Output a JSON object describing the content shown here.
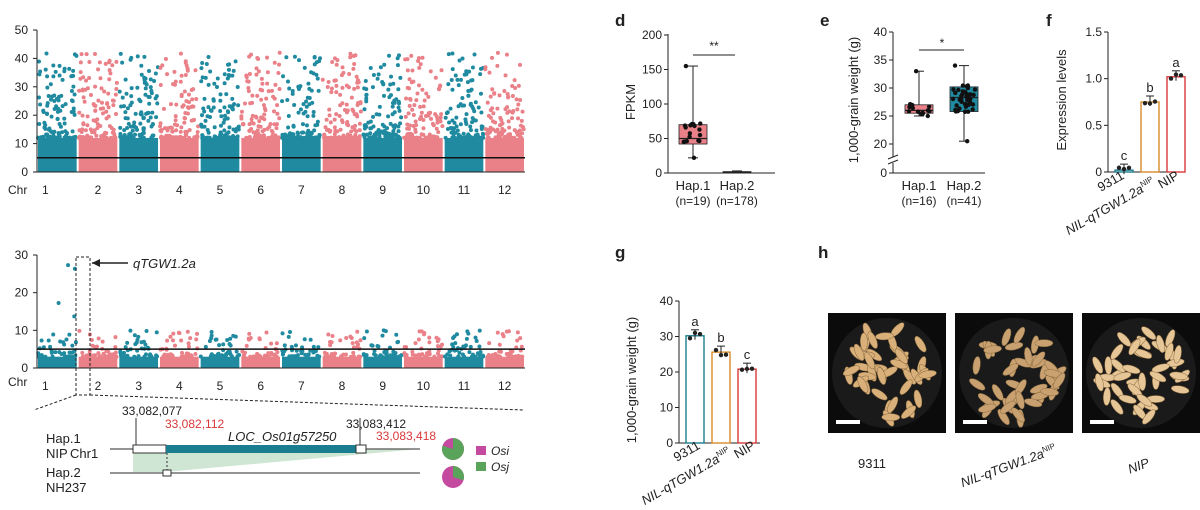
{
  "colors": {
    "teal": "#1f8aa0",
    "pink": "#ea8088",
    "dark_teal": "#1b7d90",
    "green": "#5aa35a",
    "magenta": "#c44aa0",
    "orange": "#d98c2b",
    "red": "#d9383a",
    "light_green": "#cfe6d4"
  },
  "manhattan_top": {
    "y_ticks": [
      "50",
      "40",
      "30",
      "20",
      "10",
      "0"
    ],
    "chr_label": "Chr",
    "chromosomes": [
      "1",
      "2",
      "3",
      "4",
      "5",
      "6",
      "7",
      "8",
      "9",
      "10",
      "11",
      "12"
    ],
    "threshold": 5
  },
  "manhattan_bottom": {
    "y_ticks": [
      "30",
      "20",
      "10",
      "0"
    ],
    "chr_label": "Chr",
    "chromosomes": [
      "1",
      "2",
      "3",
      "4",
      "5",
      "6",
      "7",
      "8",
      "9",
      "10",
      "11",
      "12"
    ],
    "threshold": 5,
    "peak_label": "qTGW1.2a"
  },
  "gene_model": {
    "hap1_label": "Hap.1",
    "nip_label": "NIP",
    "chr_label": "Chr1",
    "hap2_label": "Hap.2",
    "nh237_label": "NH237",
    "pos_left_black": "33,082,077",
    "pos_left_red": "33,082,112",
    "pos_right_black": "33,083,412",
    "pos_right_red": "33,083,418",
    "gene_name": "LOC_Os01g57250",
    "legend_osi": "Osi",
    "legend_osj": "Osj",
    "pie_hap1_osj_fraction": 0.8,
    "pie_hap2_osj_fraction": 0.3
  },
  "panel_d": {
    "letter": "d",
    "ylabel": "FPKM",
    "y_ticks": [
      "200",
      "150",
      "100",
      "50",
      "0"
    ],
    "categories": [
      "Hap.1",
      "Hap.2"
    ],
    "n_labels": [
      "(n=19)",
      "(n=178)"
    ],
    "sig": "**"
  },
  "panel_e": {
    "letter": "e",
    "ylabel": "1,000-grain weight (g)",
    "y_ticks": [
      "40",
      "35",
      "30",
      "25",
      "20",
      "0"
    ],
    "categories": [
      "Hap.1",
      "Hap.2"
    ],
    "n_labels": [
      "(n=16)",
      "(n=41)"
    ],
    "sig": "*"
  },
  "panel_f": {
    "letter": "f",
    "ylabel": "Expression levels",
    "y_ticks": [
      "1.5",
      "1.0",
      "0.5",
      "0"
    ],
    "cat_9311": "9311",
    "cat_nil": "NIL-qTGW1.2a",
    "cat_nil_sup": "NIP",
    "cat_nip": "NIP",
    "letters": [
      "c",
      "b",
      "a"
    ]
  },
  "panel_g": {
    "letter": "g",
    "ylabel": "1,000-grain weight (g)",
    "y_ticks": [
      "40",
      "30",
      "20",
      "10",
      "0"
    ],
    "cat_9311": "9311",
    "cat_nil": "NIL-qTGW1.2a",
    "cat_nil_sup": "NIP",
    "cat_nip": "NIP",
    "letters": [
      "a",
      "b",
      "c"
    ]
  },
  "panel_h": {
    "letter": "h",
    "cat_9311": "9311",
    "cat_nil": "NIL-qTGW1.2a",
    "cat_nil_sup": "NIP",
    "cat_nip": "NIP"
  },
  "chart_data": [
    {
      "type": "scatter",
      "name_hint": "manhattan",
      "ylim": [
        0,
        50
      ],
      "threshold": 5,
      "chromosomes": [
        "1",
        "2",
        "3",
        "4",
        "5",
        "6",
        "7",
        "8",
        "9",
        "10",
        "11",
        "12"
      ]
    },
    {
      "type": "scatter",
      "name_hint": "manhattan",
      "ylim": [
        0,
        30
      ],
      "threshold": 5,
      "chromosomes": [
        "1",
        "2",
        "3",
        "4",
        "5",
        "6",
        "7",
        "8",
        "9",
        "10",
        "11",
        "12"
      ],
      "peak": {
        "chromosome": "1",
        "value": 29
      }
    },
    {
      "type": "box",
      "categories": [
        "Hap.1",
        "Hap.2"
      ],
      "ylim": [
        0,
        200
      ],
      "ylabel": "FPKM",
      "series": [
        {
          "name": "Hap.1",
          "min": 22,
          "q1": 42,
          "median": 50,
          "q3": 70,
          "max": 155
        },
        {
          "name": "Hap.2",
          "min": 0,
          "q1": 0,
          "median": 1,
          "q3": 2,
          "max": 3
        }
      ]
    },
    {
      "type": "box",
      "categories": [
        "Hap.1",
        "Hap.2"
      ],
      "ylim": [
        20,
        40
      ],
      "ylabel": "1,000-grain weight (g)",
      "series": [
        {
          "name": "Hap.1",
          "min": 25,
          "q1": 25.5,
          "median": 26,
          "q3": 27,
          "max": 33
        },
        {
          "name": "Hap.2",
          "min": 20.5,
          "q1": 25.8,
          "median": 28.3,
          "q3": 30.2,
          "max": 34
        }
      ]
    },
    {
      "type": "bar",
      "categories": [
        "9311",
        "NIL-qTGW1.2a NIP",
        "NIP"
      ],
      "values": [
        0.02,
        0.75,
        1.02
      ],
      "ylim": [
        0,
        1.5
      ],
      "ylabel": "Expression levels"
    },
    {
      "type": "bar",
      "categories": [
        "9311",
        "NIL-qTGW1.2a NIP",
        "NIP"
      ],
      "values": [
        30.2,
        25.6,
        20.8
      ],
      "ylim": [
        0,
        40
      ],
      "ylabel": "1,000-grain weight (g)"
    }
  ]
}
